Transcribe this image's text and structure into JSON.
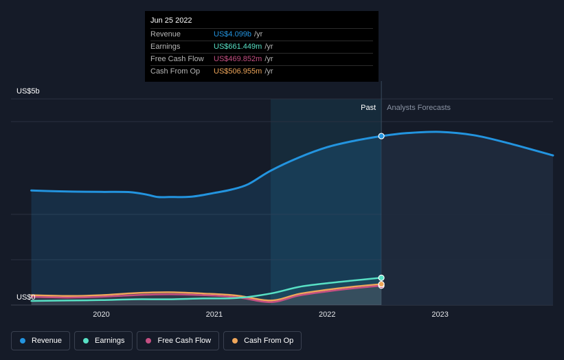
{
  "chart_data": {
    "type": "line",
    "title": "",
    "y_axis_top_label": "US$5b",
    "y_axis_bottom_label": "US$0",
    "ylim": [
      0,
      5
    ],
    "unit": "US$ billions",
    "x_ticks": [
      {
        "label": "2020",
        "x": 2020.0
      },
      {
        "label": "2021",
        "x": 2021.0
      },
      {
        "label": "2022",
        "x": 2022.0
      },
      {
        "label": "2023",
        "x": 2023.0
      }
    ],
    "xlim": [
      2019.2,
      2024.0
    ],
    "past_start": 2021.5,
    "divider": 2022.48,
    "past_label": "Past",
    "forecast_label": "Analysts Forecasts",
    "series": [
      {
        "name": "Revenue",
        "color": "#2394df",
        "points": [
          [
            2019.38,
            2.78
          ],
          [
            2019.6,
            2.76
          ],
          [
            2019.8,
            2.75
          ],
          [
            2020.0,
            2.745
          ],
          [
            2020.25,
            2.74
          ],
          [
            2020.4,
            2.68
          ],
          [
            2020.5,
            2.62
          ],
          [
            2020.6,
            2.62
          ],
          [
            2020.8,
            2.63
          ],
          [
            2021.0,
            2.72
          ],
          [
            2021.15,
            2.8
          ],
          [
            2021.3,
            2.93
          ],
          [
            2021.5,
            3.26
          ],
          [
            2021.75,
            3.58
          ],
          [
            2022.0,
            3.83
          ],
          [
            2022.25,
            3.99
          ],
          [
            2022.48,
            4.099
          ]
        ],
        "forecast": [
          [
            2022.48,
            4.099
          ],
          [
            2022.7,
            4.17
          ],
          [
            2023.0,
            4.2
          ],
          [
            2023.3,
            4.12
          ],
          [
            2023.6,
            3.93
          ],
          [
            2024.0,
            3.63
          ]
        ]
      },
      {
        "name": "Earnings",
        "color": "#58e1c5",
        "points": [
          [
            2019.38,
            0.1
          ],
          [
            2019.7,
            0.11
          ],
          [
            2020.0,
            0.12
          ],
          [
            2020.3,
            0.14
          ],
          [
            2020.6,
            0.14
          ],
          [
            2020.9,
            0.16
          ],
          [
            2021.2,
            0.17
          ],
          [
            2021.5,
            0.28
          ],
          [
            2021.75,
            0.44
          ],
          [
            2022.0,
            0.53
          ],
          [
            2022.25,
            0.6
          ],
          [
            2022.48,
            0.661
          ]
        ],
        "forecast": []
      },
      {
        "name": "Free Cash Flow",
        "color": "#c44f82",
        "points": [
          [
            2019.38,
            0.2
          ],
          [
            2019.7,
            0.18
          ],
          [
            2020.0,
            0.2
          ],
          [
            2020.3,
            0.24
          ],
          [
            2020.6,
            0.26
          ],
          [
            2020.9,
            0.24
          ],
          [
            2021.2,
            0.19
          ],
          [
            2021.5,
            0.07
          ],
          [
            2021.75,
            0.23
          ],
          [
            2022.0,
            0.33
          ],
          [
            2022.25,
            0.41
          ],
          [
            2022.48,
            0.47
          ]
        ],
        "forecast": []
      },
      {
        "name": "Cash From Op",
        "color": "#efa65a",
        "points": [
          [
            2019.38,
            0.24
          ],
          [
            2019.7,
            0.22
          ],
          [
            2020.0,
            0.24
          ],
          [
            2020.3,
            0.29
          ],
          [
            2020.6,
            0.31
          ],
          [
            2020.9,
            0.28
          ],
          [
            2021.2,
            0.23
          ],
          [
            2021.5,
            0.11
          ],
          [
            2021.75,
            0.27
          ],
          [
            2022.0,
            0.37
          ],
          [
            2022.25,
            0.45
          ],
          [
            2022.48,
            0.507
          ]
        ],
        "forecast": []
      }
    ],
    "tooltip": {
      "date": "Jun 25 2022",
      "rows": [
        {
          "name": "Revenue",
          "value": "US$4.099b",
          "unit": "/yr",
          "color": "#2394df"
        },
        {
          "name": "Earnings",
          "value": "US$661.449m",
          "unit": "/yr",
          "color": "#58e1c5"
        },
        {
          "name": "Free Cash Flow",
          "value": "US$469.852m",
          "unit": "/yr",
          "color": "#c44f82"
        },
        {
          "name": "Cash From Op",
          "value": "US$506.955m",
          "unit": "/yr",
          "color": "#efa65a"
        }
      ]
    },
    "legend": [
      {
        "name": "Revenue",
        "color": "#2394df"
      },
      {
        "name": "Earnings",
        "color": "#58e1c5"
      },
      {
        "name": "Free Cash Flow",
        "color": "#c44f82"
      },
      {
        "name": "Cash From Op",
        "color": "#efa65a"
      }
    ]
  }
}
